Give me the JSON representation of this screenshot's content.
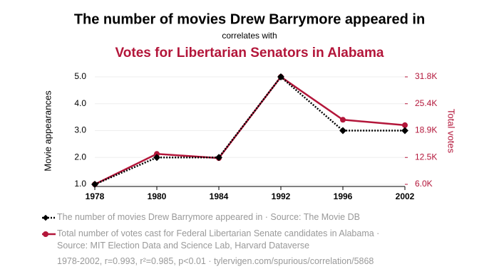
{
  "chart_data": {
    "type": "line",
    "title": "The number of movies Drew Barrymore appeared in",
    "subtitle": "correlates with",
    "title2": "Votes for Libertarian Senators in Alabama",
    "ylabel": "Movie appearances",
    "y2label": "Total votes",
    "categories": [
      "1978",
      "1980",
      "1984",
      "1992",
      "1996",
      "2002"
    ],
    "series": [
      {
        "name": "The number of movies Drew Barrymore appeared in · Source: The Movie DB",
        "color": "#000000",
        "dashed": true,
        "marker": "diamond",
        "values": [
          1,
          2,
          2,
          5,
          3,
          3
        ]
      },
      {
        "name": "Total number of votes cast for Federal Libertarian Senate candidates in Alabama · Source: MIT Election Data and Science Lab, Harvard Dataverse",
        "color": "#b3163a",
        "dashed": false,
        "marker": "circle",
        "axis": "y2",
        "values": [
          6000,
          13300,
          12300,
          31800,
          21500,
          20200
        ]
      }
    ],
    "ylim": [
      1,
      5
    ],
    "yticks": [
      {
        "value": 1,
        "label": "1.0"
      },
      {
        "value": 2,
        "label": "2.0"
      },
      {
        "value": 3,
        "label": "3.0"
      },
      {
        "value": 4,
        "label": "4.0"
      },
      {
        "value": 5,
        "label": "5.0"
      }
    ],
    "y2lim": [
      6000,
      31800
    ],
    "y2ticks": [
      {
        "value": 6000,
        "label": "6.0K"
      },
      {
        "value": 12450,
        "label": "12.5K"
      },
      {
        "value": 18900,
        "label": "18.9K"
      },
      {
        "value": 25350,
        "label": "25.4K"
      },
      {
        "value": 31800,
        "label": "31.8K"
      }
    ],
    "grid": true,
    "footnote": "1978-2002, r=0.993, r²=0.985, p<0.01 · tylervigen.com/spurious/correlation/5868"
  }
}
